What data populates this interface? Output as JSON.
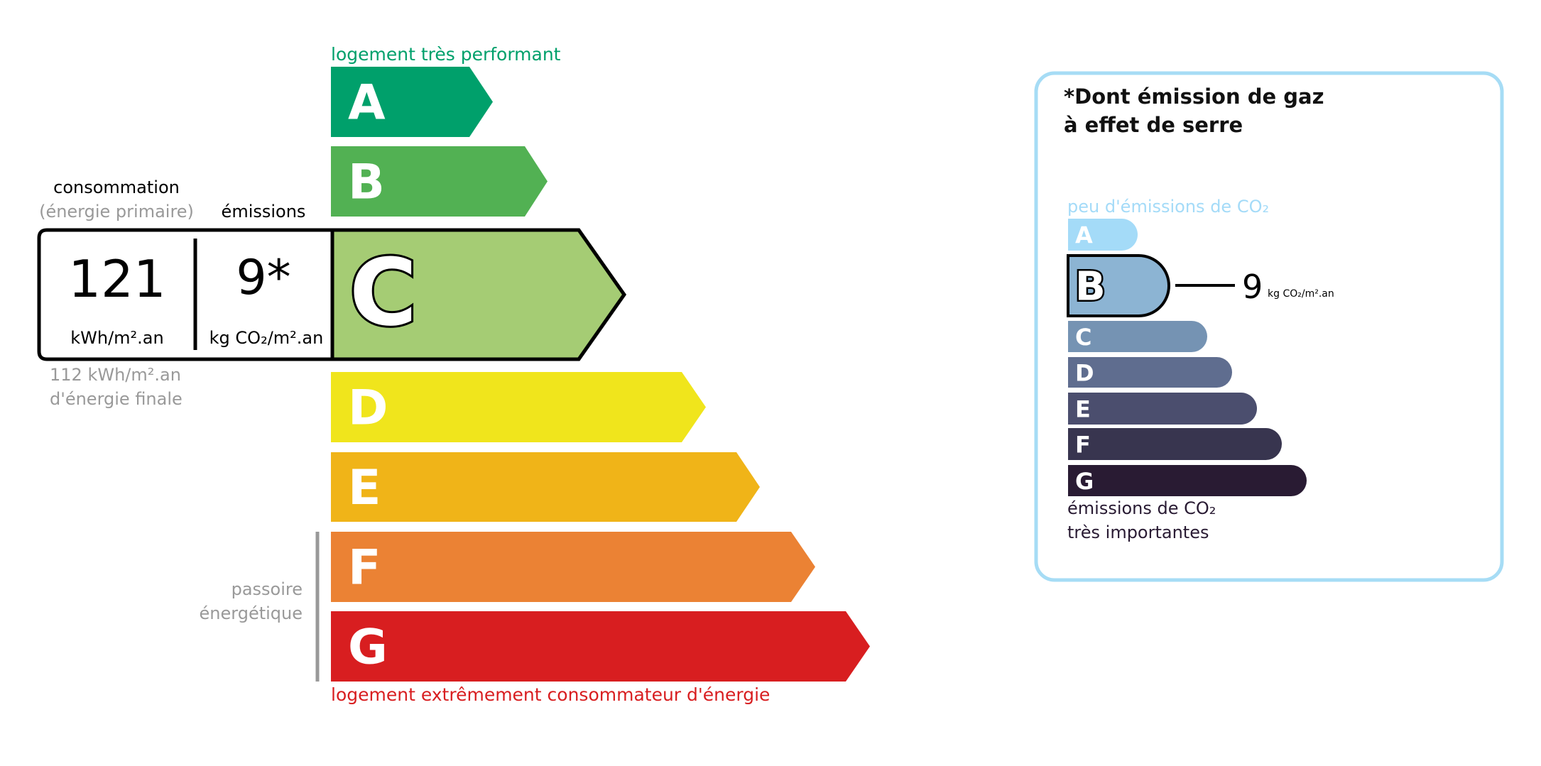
{
  "energy": {
    "top_label": "logement très performant",
    "bottom_label": "logement extrêmement consommateur d'énergie",
    "classes": [
      {
        "letter": "A",
        "color": "#00a06b"
      },
      {
        "letter": "B",
        "color": "#52b153"
      },
      {
        "letter": "C",
        "color": "#a5cc74"
      },
      {
        "letter": "D",
        "color": "#f0e51c"
      },
      {
        "letter": "E",
        "color": "#f0b418"
      },
      {
        "letter": "F",
        "color": "#eb8234"
      },
      {
        "letter": "G",
        "color": "#d81e20"
      }
    ],
    "current_class": "C",
    "consumption_label": "consommation",
    "consumption_sub": "(énergie primaire)",
    "emissions_label": "émissions",
    "consumption_value": "121",
    "consumption_unit": "kWh/m².an",
    "emissions_value": "9*",
    "emissions_unit": "kg CO₂/m².an",
    "final_energy_value": "112 kWh/m².an",
    "final_energy_label": "d'énergie finale",
    "passoire_line1": "passoire",
    "passoire_line2": "énergétique"
  },
  "ges": {
    "title_line1": "*Dont émission de gaz",
    "title_line2": "à effet de serre",
    "top_label": "peu d'émissions de CO₂",
    "bottom_line1": "émissions de CO₂",
    "bottom_line2": "très importantes",
    "classes": [
      {
        "letter": "A",
        "color": "#a4dbf8"
      },
      {
        "letter": "B",
        "color": "#8cb4d3"
      },
      {
        "letter": "C",
        "color": "#7593b3"
      },
      {
        "letter": "D",
        "color": "#5f6d8f"
      },
      {
        "letter": "E",
        "color": "#4b4e6e"
      },
      {
        "letter": "F",
        "color": "#38354f"
      },
      {
        "letter": "G",
        "color": "#291b33"
      }
    ],
    "current_class": "B",
    "value": "9",
    "unit": "kg CO₂/m².an",
    "border_color": "#a6dcf5"
  }
}
